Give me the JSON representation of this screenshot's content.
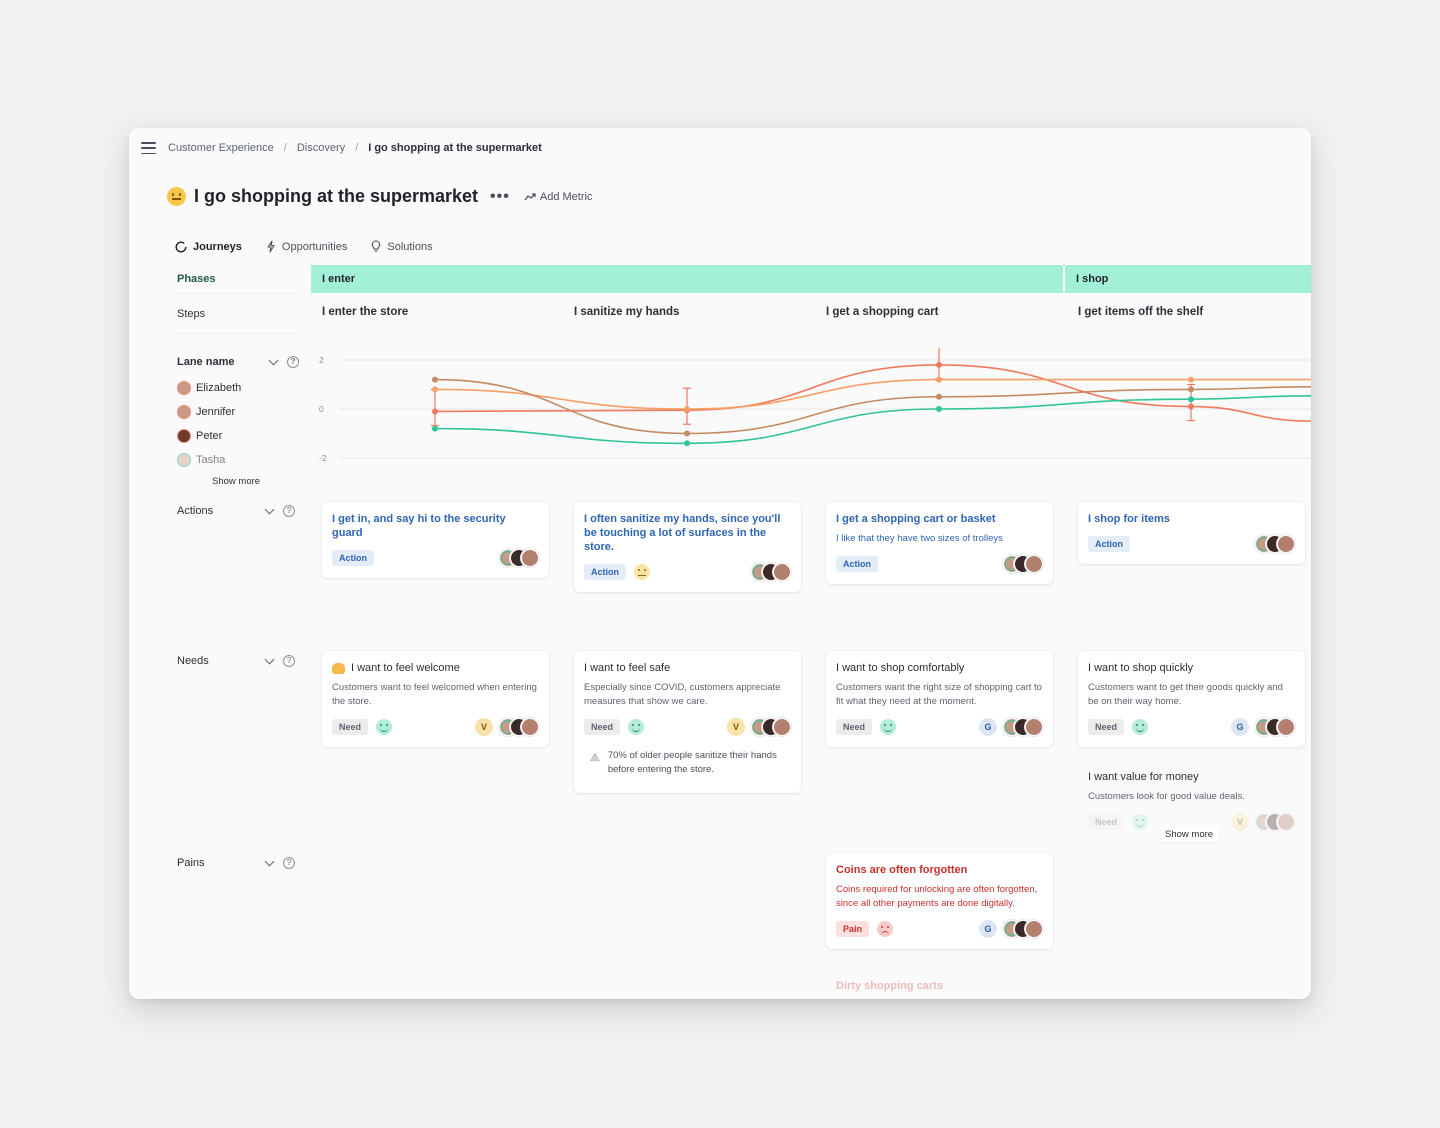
{
  "breadcrumb": [
    "Customer Experience",
    "Discovery",
    "I go shopping at the supermarket"
  ],
  "header": {
    "title": "I go shopping at the supermarket",
    "more_label": "•••",
    "add_metric_label": "Add Metric"
  },
  "tabs": [
    {
      "label": "Journeys",
      "icon": "circle-icon"
    },
    {
      "label": "Opportunities",
      "icon": "lightning-icon"
    },
    {
      "label": "Solutions",
      "icon": "lightbulb-icon"
    }
  ],
  "lanes": {
    "phases_label": "Phases",
    "steps_label": "Steps",
    "metric_lane_label": "Lane name",
    "actions_label": "Actions",
    "needs_label": "Needs",
    "pains_label": "Pains",
    "help_glyph": "?"
  },
  "phases": [
    "I enter",
    "I shop"
  ],
  "steps": [
    "I enter the store",
    "I sanitize my hands",
    "I get a shopping cart",
    "I get items off the shelf"
  ],
  "personas": [
    "Elizabeth",
    "Jennifer",
    "Peter",
    "Tasha"
  ],
  "persona_show_more": "Show more",
  "chart_data": {
    "type": "line",
    "categories": [
      "I enter the store",
      "I sanitize my hands",
      "I get a shopping cart",
      "I get items off the shelf"
    ],
    "ylim": [
      -2,
      2
    ],
    "yticks": [
      "2",
      "0",
      "-2"
    ],
    "grid": true,
    "series": [
      {
        "color": "#f07a5e",
        "values": [
          -0.1,
          -0.05,
          1.8,
          0.1
        ],
        "error_bars": true
      },
      {
        "color": "#f4a068",
        "values": [
          0.8,
          0.0,
          1.2,
          1.2
        ],
        "error_bars": false
      },
      {
        "color": "#c48a62",
        "values": [
          1.2,
          -1.0,
          0.5,
          0.8
        ],
        "error_bars": false
      },
      {
        "color": "#33c39a",
        "values": [
          -0.8,
          -1.4,
          0.0,
          0.4
        ],
        "error_bars": false
      }
    ]
  },
  "actions": [
    {
      "title": "I get in, and say hi to the security guard",
      "desc": "",
      "tag": "Action"
    },
    {
      "title": "I often sanitize my hands, since you'll be touching a lot of surfaces in the store.",
      "desc": "",
      "tag": "Action"
    },
    {
      "title": "I get a shopping cart or basket",
      "desc": "I like that they have two sizes of trolleys",
      "tag": "Action"
    },
    {
      "title": "I shop for items",
      "desc": "",
      "tag": "Action"
    }
  ],
  "needs": [
    {
      "title": "I want to feel welcome",
      "desc": "Customers want to feel welcomed when entering the store.",
      "tag": "Need",
      "letter": "V"
    },
    {
      "title": "I want to feel safe",
      "desc": "Especially since COVID, customers appreciate measures that show we care.",
      "tag": "Need",
      "letter": "V",
      "stat": "70% of older people sanitize their hands before entering the store."
    },
    {
      "title": "I want to shop comfortably",
      "desc": "Customers want the right size of shopping cart to fit what they need at the moment.",
      "tag": "Need",
      "letter": "G"
    },
    {
      "title": "I want to shop quickly",
      "desc": "Customers want to get their goods quickly and be on their way home.",
      "tag": "Need",
      "letter": "G"
    },
    {
      "title": "I want value for money",
      "desc": "Customers look for good value deals.",
      "tag": "Need",
      "letter": "V"
    }
  ],
  "needs_show_more": "Show more",
  "pains": [
    {
      "title": "Coins are often forgotten",
      "desc": "Coins required for unlocking are often forgotten, since all other payments are done digitally.",
      "tag": "Pain",
      "letter": "G"
    },
    {
      "title": "Dirty shopping carts"
    }
  ],
  "colors": {
    "phase": "#a3f0d8",
    "action_blue": "#2f66b3",
    "pain_red": "#c9302c",
    "positive": "#33c39a"
  }
}
